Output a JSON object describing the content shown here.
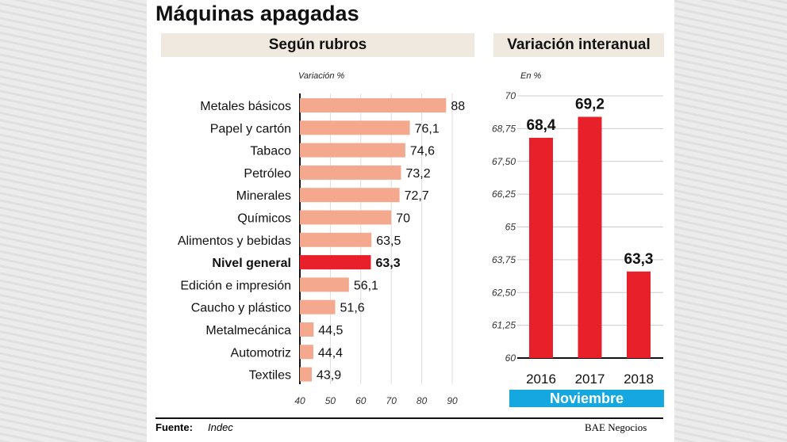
{
  "title": "Máquinas apagadas",
  "chart_data": [
    {
      "type": "bar",
      "orientation": "horizontal",
      "title": "Según rubros",
      "xlabel": "Variación %",
      "categories": [
        "Metales básicos",
        "Papel y cartón",
        "Tabaco",
        "Petróleo",
        "Minerales",
        "Químicos",
        "Alimentos y bebidas",
        "Nivel general",
        "Edición e impresión",
        "Caucho y plástico",
        "Metalmecánica",
        "Automotriz",
        "Textiles"
      ],
      "values": [
        88,
        76.1,
        74.6,
        73.2,
        72.7,
        70,
        63.5,
        63.3,
        56.1,
        51.6,
        44.5,
        44.4,
        43.9
      ],
      "value_labels": [
        "88",
        "76,1",
        "74,6",
        "73,2",
        "72,7",
        "70",
        "63,5",
        "63,3",
        "56,1",
        "51,6",
        "44,5",
        "44,4",
        "43,9"
      ],
      "highlight": "Nivel general",
      "xlim": [
        40,
        90
      ],
      "xticks": [
        "40",
        "50",
        "60",
        "70",
        "80",
        "90"
      ],
      "grid": true,
      "colors": {
        "bar": "#f4a98f",
        "highlight": "#e8202a"
      }
    },
    {
      "type": "bar",
      "title": "Variación interanual",
      "ylabel": "En %",
      "xlabel": "Noviembre",
      "categories": [
        "2016",
        "2017",
        "2018"
      ],
      "values": [
        68.4,
        69.2,
        63.3
      ],
      "value_labels": [
        "68,4",
        "69,2",
        "63,3"
      ],
      "ylim": [
        60,
        70
      ],
      "yticks": [
        "60",
        "61,25",
        "62,50",
        "63,75",
        "65",
        "66,25",
        "67,50",
        "68,75",
        "70"
      ],
      "grid": true,
      "colors": {
        "bar": "#e8202a",
        "band": "#14a7e0"
      }
    }
  ],
  "footer": {
    "source_label": "Fuente:",
    "source": "Indec",
    "brand": "BAE Negocios"
  }
}
